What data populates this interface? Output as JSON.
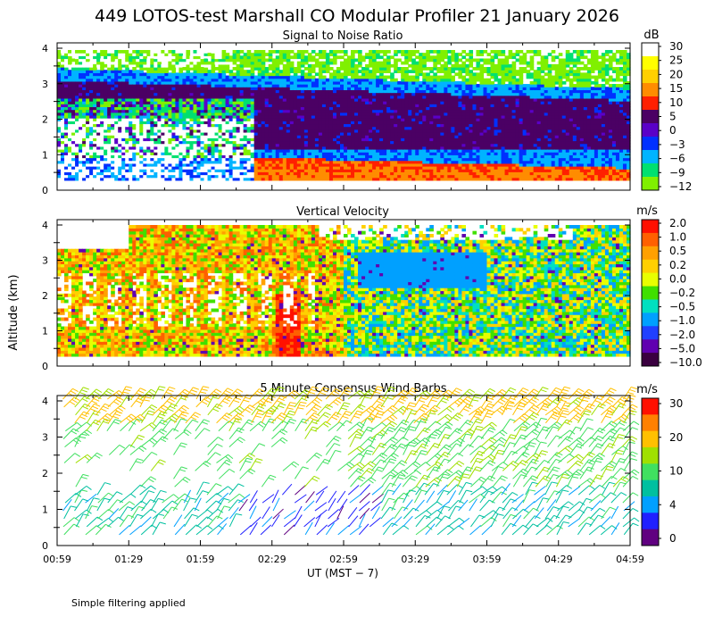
{
  "title": "449 LOTOS-test Marshall CO Modular Profiler 21 January 2026",
  "footnote": "Simple filtering applied",
  "chart_data": [
    {
      "type": "heatmap",
      "title": "Signal to Noise Ratio",
      "ylabel": "",
      "xlabel": "",
      "ylim": [
        0,
        4
      ],
      "yticks": [
        "0",
        "1",
        "2",
        "3",
        "4"
      ],
      "colorbar_unit": "dB",
      "colorbar_labels": [
        "30",
        "25",
        "20",
        "15",
        "10",
        "5",
        "0",
        "−3",
        "−6",
        "−9",
        "−12"
      ],
      "colorbar_colors": [
        "#ffffff",
        "#ffff00",
        "#ffd000",
        "#ff8c00",
        "#ff2000",
        "#4b0064",
        "#5a00c8",
        "#0030ff",
        "#00b4ff",
        "#00e070",
        "#80f000"
      ]
    },
    {
      "type": "heatmap",
      "title": "Vertical Velocity",
      "ylabel": "Altitude (km)",
      "xlabel": "",
      "ylim": [
        0,
        4
      ],
      "yticks": [
        "0",
        "1",
        "2",
        "3",
        "4"
      ],
      "colorbar_unit": "m/s",
      "colorbar_labels": [
        "2.0",
        "1.0",
        "0.5",
        "0.2",
        "0.0",
        "−0.2",
        "−0.5",
        "−1.0",
        "−2.0",
        "−5.0",
        "−10.0"
      ],
      "colorbar_colors": [
        "#ff1000",
        "#ff6000",
        "#ffa000",
        "#ffd000",
        "#e8ff00",
        "#40e000",
        "#00e0c0",
        "#00a0ff",
        "#2040ff",
        "#6000b0",
        "#3a0040"
      ]
    },
    {
      "type": "scatter",
      "title": "5 Minute Consensus Wind Barbs",
      "ylabel": "",
      "xlabel": "UT  (MST − 7)",
      "ylim": [
        0,
        4
      ],
      "yticks": [
        "0",
        "1",
        "2",
        "3",
        "4"
      ],
      "xticks": [
        "00:59",
        "01:29",
        "01:59",
        "02:29",
        "02:59",
        "03:29",
        "03:59",
        "04:29",
        "04:59"
      ],
      "colorbar_unit": "m/s",
      "colorbar_labels": [
        "30",
        "20",
        "10",
        "4",
        "0"
      ],
      "colorbar_colors": [
        "#ff1000",
        "#ff8000",
        "#ffc000",
        "#a0e000",
        "#40e060",
        "#00c0a0",
        "#00a0ff",
        "#2020ff",
        "#600080"
      ]
    }
  ]
}
